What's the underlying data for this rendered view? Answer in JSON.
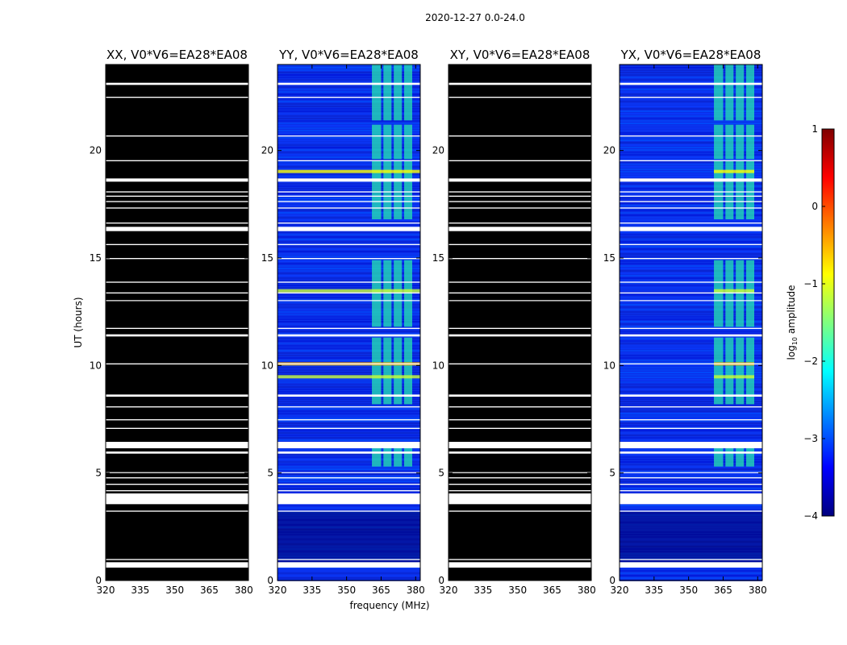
{
  "figure": {
    "suptitle": "2020-12-27 0.0-24.0",
    "xlabel": "frequency (MHz)",
    "ylabel": "UT (hours)",
    "colorbar_label": "log10 amplitude",
    "colorbar_label_main": "log",
    "colorbar_label_sub": "10",
    "colorbar_label_rest": " amplitude",
    "colorbar_ticks": [
      "1",
      "0",
      "−1",
      "−2",
      "−3",
      "−4"
    ],
    "colormap": [
      "#00007f",
      "#0000ff",
      "#007fff",
      "#00ffff",
      "#7fff7f",
      "#ffff00",
      "#ff7f00",
      "#ff0000",
      "#7f0000"
    ]
  },
  "chart_data": [
    {
      "type": "heatmap",
      "title": "XX, V0*V6=EA28*EA08",
      "fill": "black",
      "xlabel": "",
      "ylabel": "UT (hours)",
      "xlim": [
        320,
        382
      ],
      "ylim": [
        0,
        24
      ],
      "xticks": [
        "320",
        "335",
        "350",
        "365",
        "380"
      ],
      "yticks": [
        "0",
        "5",
        "10",
        "15",
        "20"
      ]
    },
    {
      "type": "heatmap",
      "title": "YY, V0*V6=EA28*EA08",
      "fill": "spectrum",
      "xlabel": "frequency (MHz)",
      "ylabel": "",
      "xlim": [
        320,
        382
      ],
      "ylim": [
        0,
        24
      ],
      "xticks": [
        "320",
        "335",
        "350",
        "365",
        "380"
      ],
      "yticks": [
        "0",
        "5",
        "10",
        "15",
        "20"
      ]
    },
    {
      "type": "heatmap",
      "title": "XY, V0*V6=EA28*EA08",
      "fill": "black",
      "xlabel": "",
      "ylabel": "",
      "xlim": [
        320,
        382
      ],
      "ylim": [
        0,
        24
      ],
      "xticks": [
        "320",
        "335",
        "350",
        "365",
        "380"
      ],
      "yticks": [
        "0",
        "5",
        "10",
        "15",
        "20"
      ]
    },
    {
      "type": "heatmap",
      "title": "YX, V0*V6=EA28*EA08",
      "fill": "spectrum",
      "xlabel": "",
      "ylabel": "",
      "xlim": [
        320,
        382
      ],
      "ylim": [
        0,
        24
      ],
      "xticks": [
        "320",
        "335",
        "350",
        "365",
        "380"
      ],
      "yticks": [
        "0",
        "5",
        "10",
        "15",
        "20"
      ]
    }
  ],
  "rfi_bands_mhz": [
    [
      361,
      365
    ],
    [
      366,
      369.5
    ],
    [
      370.5,
      374
    ],
    [
      375,
      378.5
    ]
  ],
  "flag_gaps_ut": [
    [
      0.6,
      0.85
    ],
    [
      0.95,
      1.0
    ],
    [
      3.2,
      3.25
    ],
    [
      3.55,
      4.05
    ],
    [
      4.15,
      4.2
    ],
    [
      4.45,
      4.5
    ],
    [
      4.75,
      4.8
    ],
    [
      5.0,
      5.04
    ],
    [
      5.9,
      6.0
    ],
    [
      6.15,
      6.45
    ],
    [
      7.05,
      7.1
    ],
    [
      7.45,
      7.5
    ],
    [
      8.05,
      8.1
    ],
    [
      8.55,
      8.65
    ],
    [
      10.05,
      10.1
    ],
    [
      11.35,
      11.45
    ],
    [
      11.7,
      11.75
    ],
    [
      13.0,
      13.04
    ],
    [
      13.35,
      13.4
    ],
    [
      13.85,
      13.9
    ],
    [
      14.95,
      15.0
    ],
    [
      15.6,
      15.65
    ],
    [
      16.25,
      16.45
    ],
    [
      16.6,
      16.65
    ],
    [
      17.3,
      17.35
    ],
    [
      17.6,
      17.65
    ],
    [
      17.85,
      17.9
    ],
    [
      18.05,
      18.1
    ],
    [
      18.55,
      18.7
    ],
    [
      19.5,
      19.55
    ],
    [
      20.65,
      20.7
    ],
    [
      22.45,
      22.5
    ],
    [
      23.05,
      23.15
    ]
  ]
}
